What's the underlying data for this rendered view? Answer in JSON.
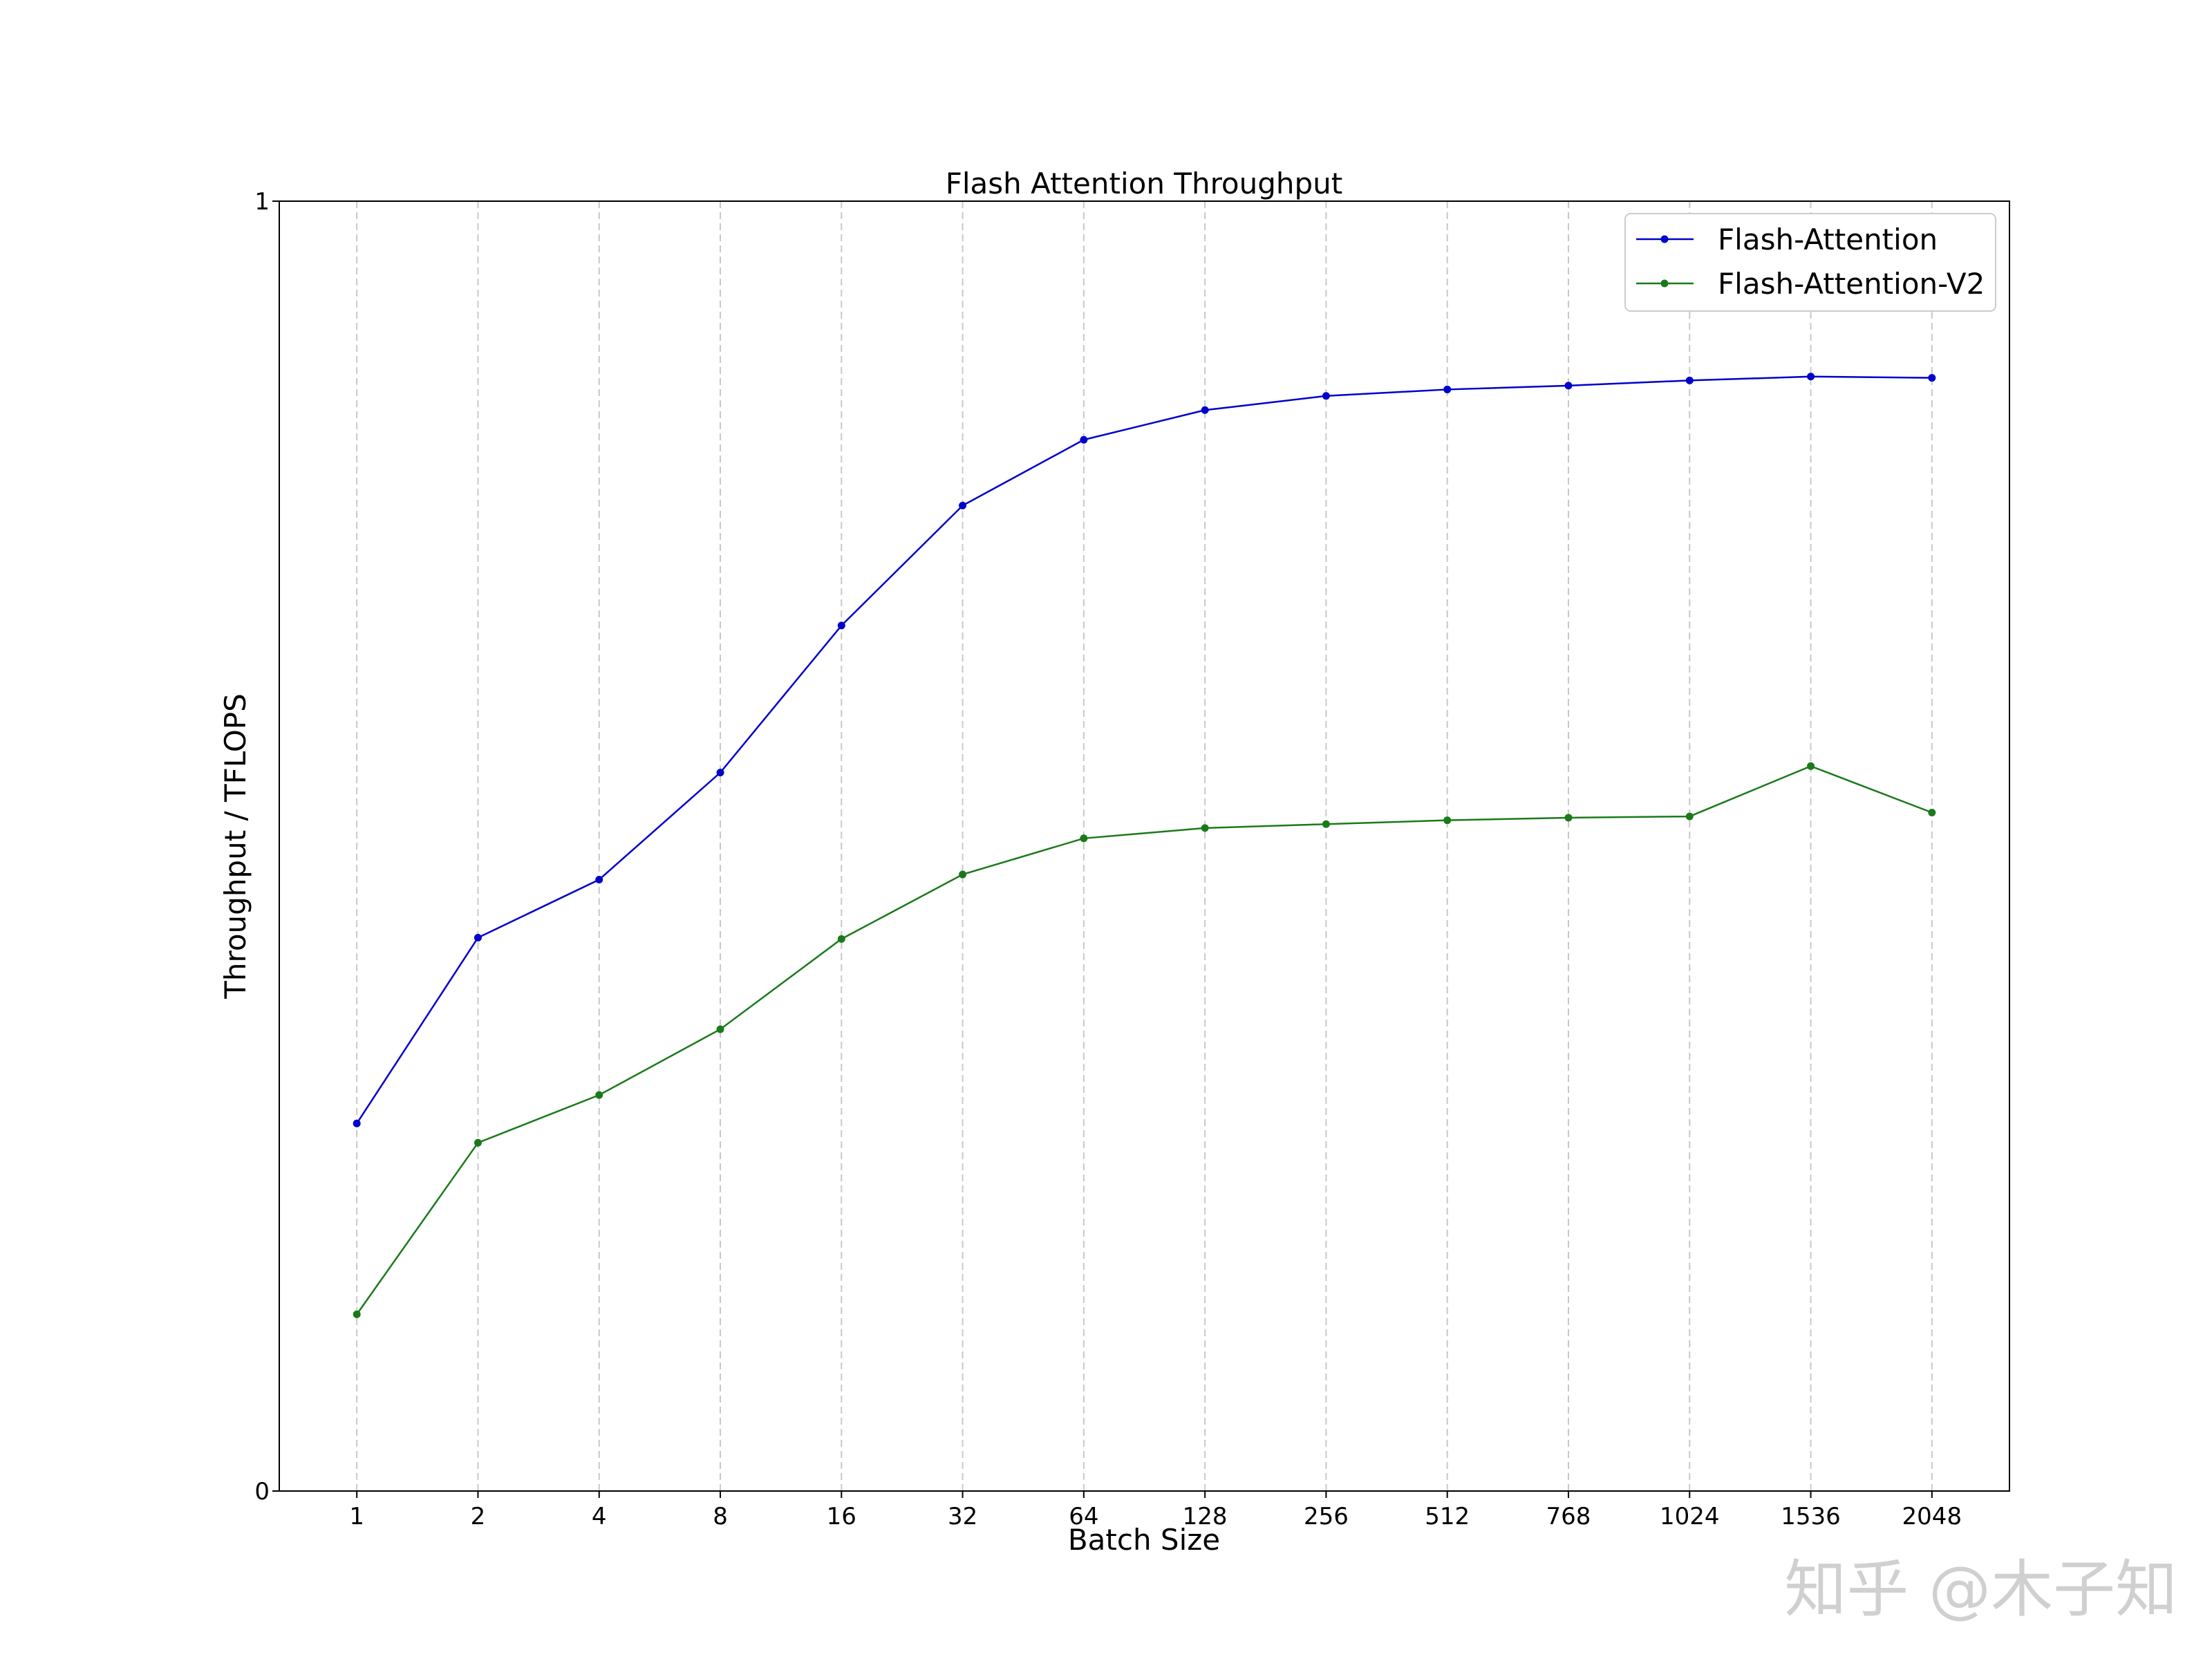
{
  "chart_data": {
    "type": "line",
    "title": "Flash Attention Throughput",
    "x_label": "Batch Size",
    "y_label": "Throughput / TFLOPS",
    "categories": [
      "1",
      "2",
      "4",
      "8",
      "16",
      "32",
      "64",
      "128",
      "256",
      "512",
      "768",
      "1024",
      "1536",
      "2048"
    ],
    "series": [
      {
        "name": "Flash-Attention",
        "color": "#0000cc",
        "values": [
          0.285,
          0.429,
          0.474,
          0.557,
          0.671,
          0.764,
          0.815,
          0.838,
          0.849,
          0.854,
          0.857,
          0.861,
          0.864,
          0.863
        ]
      },
      {
        "name": "Flash-Attention-V2",
        "color": "#1a7a1a",
        "values": [
          0.137,
          0.27,
          0.307,
          0.358,
          0.428,
          0.478,
          0.506,
          0.514,
          0.517,
          0.52,
          0.522,
          0.523,
          0.562,
          0.526
        ]
      }
    ],
    "ylim": [
      0,
      1
    ],
    "yticks": [
      0,
      1
    ],
    "grid": true,
    "legend": "upper right",
    "watermark": "知乎 @木子知"
  }
}
